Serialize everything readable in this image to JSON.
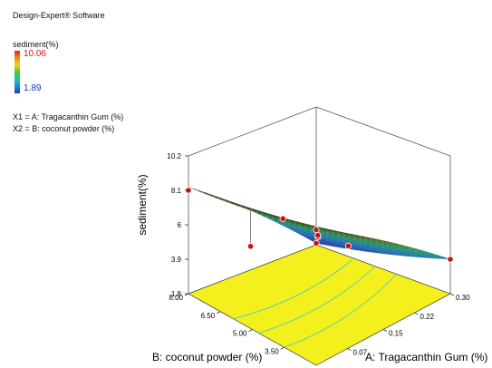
{
  "app_title": "Design-Expert® Software",
  "response": {
    "name": "sediment(%)",
    "high": "10.06",
    "low": "1.89"
  },
  "factors": [
    "X1 = A: Tragacanthin Gum (%)",
    "X2 = B: coconut powder (%)"
  ],
  "colors": {
    "high": "#e0201a",
    "low": "#2430c8",
    "floor": "#f4f01e",
    "design_point": "#cc1111"
  },
  "chart_data": {
    "type": "surface3d",
    "zlabel": "sediment(%)",
    "xlabel": "A: Tragacanthin Gum (%)",
    "ylabel": "B: coconut powder (%)",
    "z_ticks": [
      "1.8",
      "3.9",
      "6",
      "8.1",
      "10.2"
    ],
    "x_ticks": [
      "0.07",
      "0.15",
      "0.22",
      "0.30"
    ],
    "y_ticks": [
      "3.50",
      "5.00",
      "6.50",
      "8.00"
    ],
    "xlim": [
      0.0,
      0.3
    ],
    "ylim": [
      2.0,
      8.0
    ],
    "zlim": [
      1.8,
      10.2
    ],
    "surface_corners": [
      {
        "A": 0.0,
        "B": 8.0,
        "sediment": 8.3
      },
      {
        "A": 0.0,
        "B": 2.0,
        "sediment": 10.06
      },
      {
        "A": 0.3,
        "B": 2.0,
        "sediment": 3.9
      },
      {
        "A": 0.3,
        "B": 8.0,
        "sediment": 1.89
      }
    ],
    "design_points": [
      {
        "A": 0.0,
        "B": 2.0,
        "sediment": 10.06
      },
      {
        "A": 0.0,
        "B": 8.0,
        "sediment": 8.1
      },
      {
        "A": 0.3,
        "B": 2.0,
        "sediment": 3.9
      },
      {
        "A": 0.3,
        "B": 8.0,
        "sediment": 1.89
      },
      {
        "A": 0.07,
        "B": 5.0,
        "sediment": 7.7
      },
      {
        "A": 0.15,
        "B": 5.0,
        "sediment": 5.6
      },
      {
        "A": 0.15,
        "B": 5.0,
        "sediment": 5.7
      },
      {
        "A": 0.07,
        "B": 6.5,
        "sediment": 5.0
      },
      {
        "A": 0.22,
        "B": 5.0,
        "sediment": 4.2
      }
    ]
  }
}
